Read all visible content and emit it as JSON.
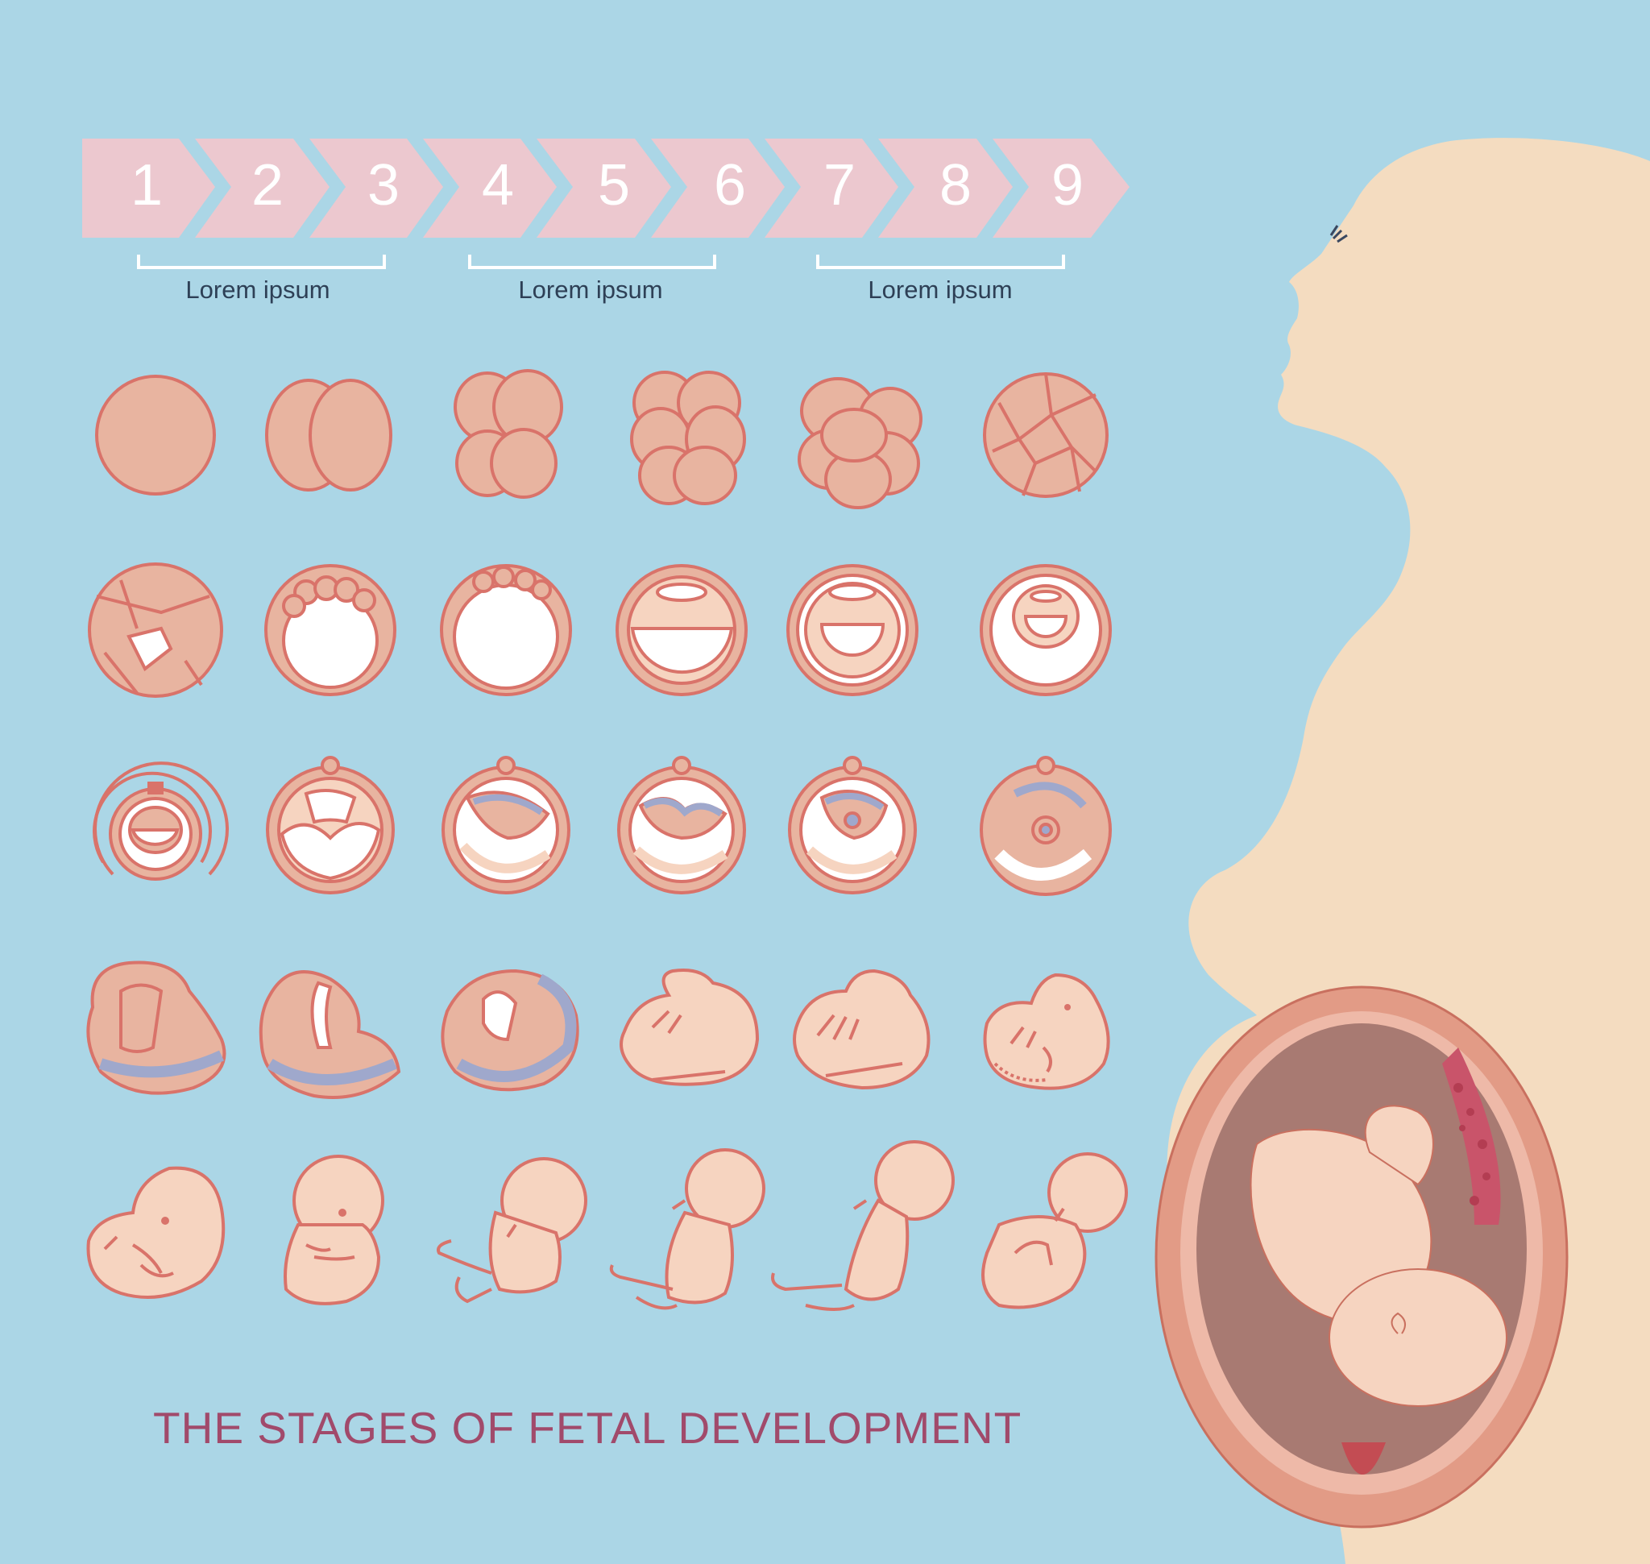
{
  "timeline": {
    "months": [
      "1",
      "2",
      "3",
      "4",
      "5",
      "6",
      "7",
      "8",
      "9"
    ],
    "ranges": [
      "Lorem ipsum",
      "Lorem ipsum",
      "Lorem ipsum"
    ]
  },
  "title": "THE STAGES OF FETAL DEVELOPMENT",
  "colors": {
    "background": "#abd6e6",
    "chevron": "#ecc8cf",
    "cell_fill": "#e8b4a0",
    "cell_stroke": "#d9736a",
    "amnion_blue": "#9fa8cc",
    "fetus_skin": "#f6d4c0",
    "silhouette": "#f4dcc0",
    "title": "#a14a6b",
    "label": "#2e4056"
  },
  "stages": [
    [
      "zygote",
      "two-cell",
      "four-cell",
      "eight-cell",
      "sixteen-cell",
      "morula"
    ],
    [
      "early-blastocyst",
      "blastocyst-forming",
      "blastocyst",
      "implanting-blastocyst",
      "bilaminar-disc",
      "amniotic-cavity"
    ],
    [
      "implantation",
      "yolk-sac",
      "embryonic-disc-folding",
      "neural-plate",
      "neural-tube",
      "early-folding"
    ],
    [
      "folding-embryo",
      "curved-embryo",
      "c-shaped-embryo",
      "week-5-embryo",
      "week-6-embryo",
      "week-7-embryo"
    ],
    [
      "week-8-fetus",
      "week-10-fetus",
      "week-12-fetus",
      "week-16-fetus",
      "week-20-fetus",
      "week-24-fetus"
    ]
  ]
}
